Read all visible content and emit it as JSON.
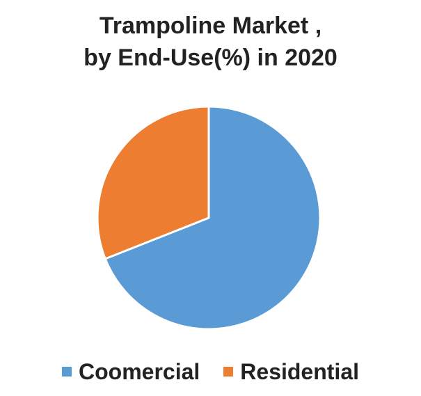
{
  "chart_data": {
    "type": "pie",
    "title_line1": "Trampoline Market ,",
    "title_line2": "by  End-Use(%) in 2020",
    "slices": [
      {
        "label": "Coomercial",
        "value": 69,
        "color": "#5b9bd5"
      },
      {
        "label": "Residential",
        "value": 31,
        "color": "#ed7d31"
      }
    ],
    "legend_position": "bottom"
  }
}
